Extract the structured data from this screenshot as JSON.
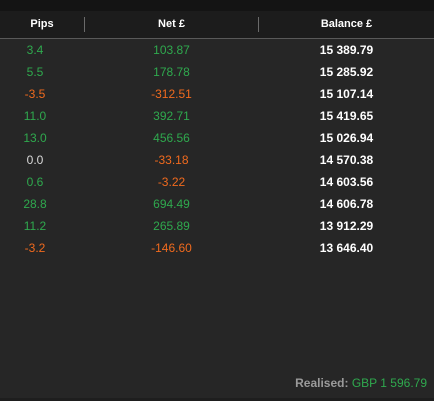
{
  "table": {
    "columns": [
      "Pips",
      "Net £",
      "Balance £"
    ],
    "rows": [
      {
        "pips": "3.4",
        "net": "103.87",
        "balance": "15 389.79",
        "status": "positive"
      },
      {
        "pips": "5.5",
        "net": "178.78",
        "balance": "15 285.92",
        "status": "positive"
      },
      {
        "pips": "-3.5",
        "net": "-312.51",
        "balance": "15 107.14",
        "status": "negative"
      },
      {
        "pips": "11.0",
        "net": "392.71",
        "balance": "15 419.65",
        "status": "positive"
      },
      {
        "pips": "13.0",
        "net": "456.56",
        "balance": "15 026.94",
        "status": "positive"
      },
      {
        "pips": "0.0",
        "net": "-33.18",
        "balance": "14 570.38",
        "status": "mixed"
      },
      {
        "pips": "0.6",
        "net": "-3.22",
        "balance": "14 603.56",
        "status": "mixed-pos"
      },
      {
        "pips": "28.8",
        "net": "694.49",
        "balance": "14 606.78",
        "status": "positive"
      },
      {
        "pips": "11.2",
        "net": "265.89",
        "balance": "13 912.29",
        "status": "positive"
      },
      {
        "pips": "-3.2",
        "net": "-146.60",
        "balance": "13 646.40",
        "status": "negative"
      }
    ]
  },
  "footer": {
    "label": "Realised:",
    "value": "GBP 1 596.79"
  },
  "colors": {
    "positive": "#2fa94e",
    "negative": "#f06a1e",
    "neutral": "#d9d9d9",
    "background": "#262626",
    "header_background": "#1c1c1c"
  }
}
